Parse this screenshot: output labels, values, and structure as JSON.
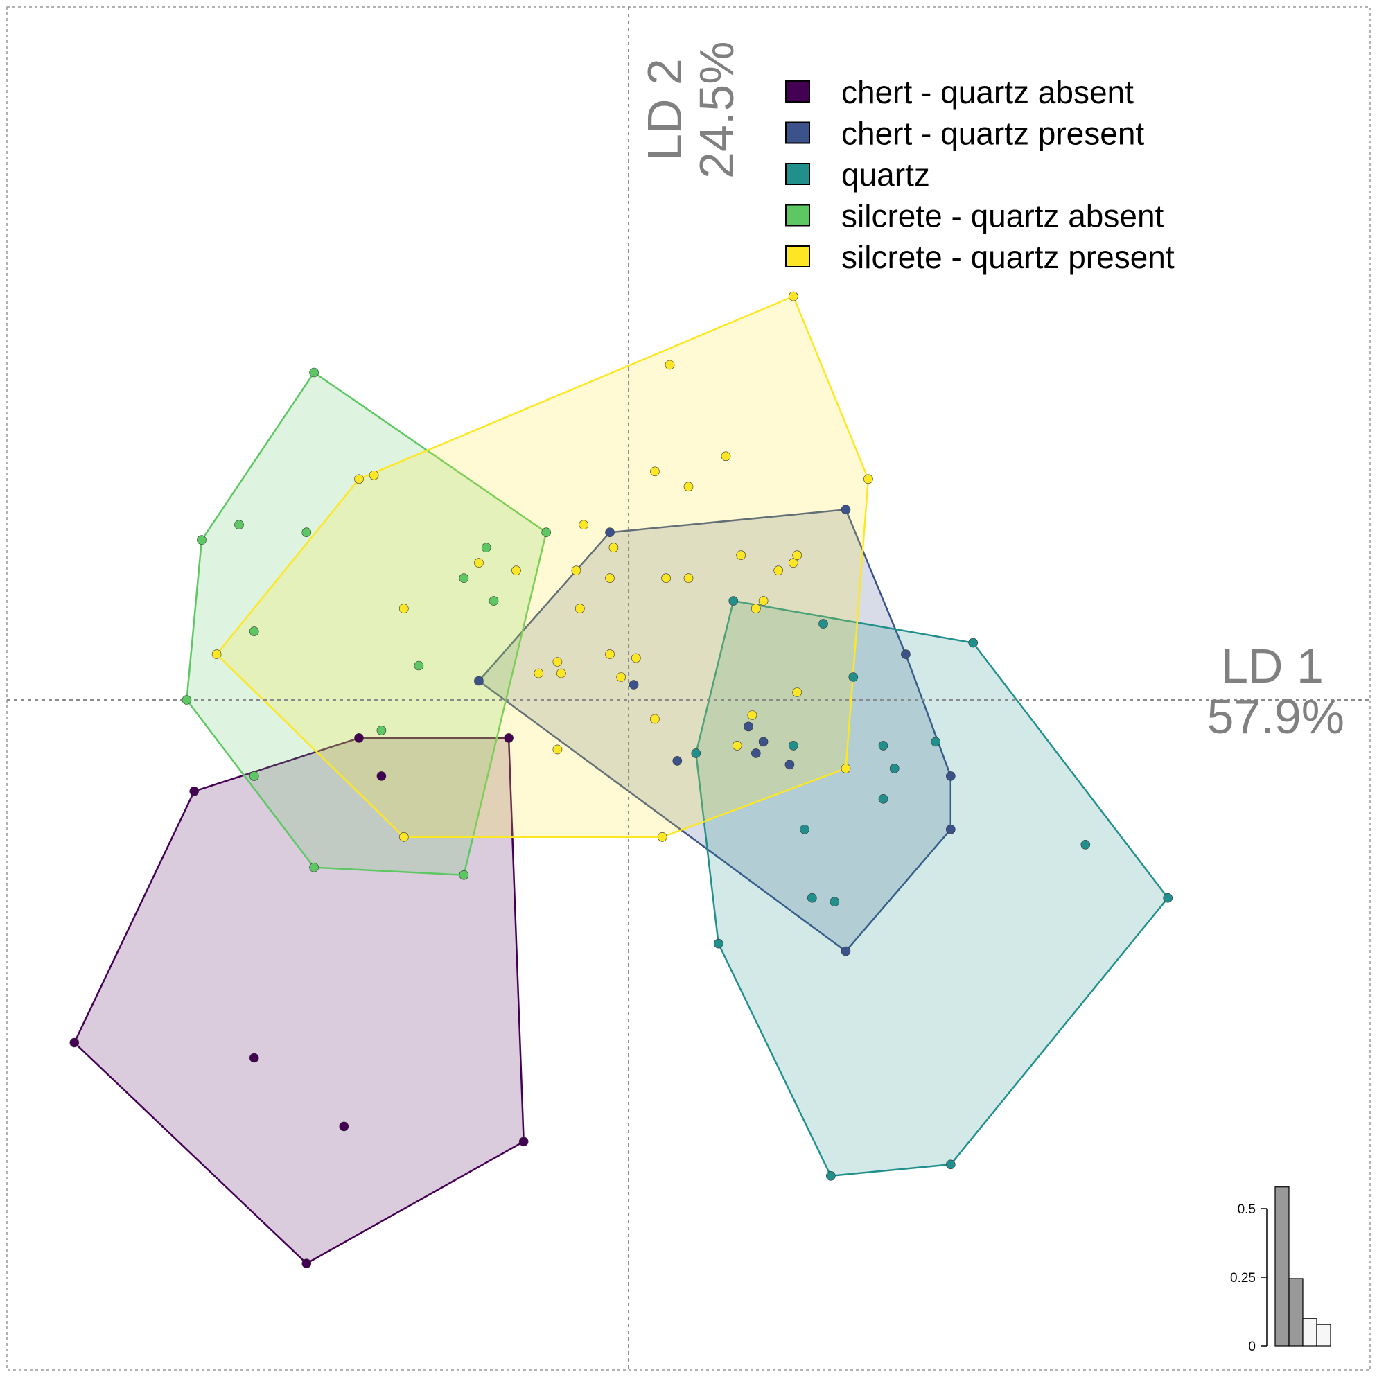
{
  "chart_data": {
    "type": "scatter",
    "title": "",
    "xlabel": "LD 1",
    "xlabel_pct": "57.9%",
    "ylabel": "LD 2",
    "ylabel_pct": "24.5%",
    "xlim": [
      -8.3,
      9.9
    ],
    "ylim": [
      -8.8,
      9.1
    ],
    "axis_lines_at_zero": true,
    "grid": false,
    "legend_position": "top-right",
    "hulls": true,
    "series": [
      {
        "name": "chert - quartz absent",
        "color": "#440154",
        "points": [
          [
            -7.4,
            -4.5
          ],
          [
            -5.8,
            -1.2
          ],
          [
            -3.6,
            -0.5
          ],
          [
            -3.3,
            -1.0
          ],
          [
            -1.6,
            -0.5
          ],
          [
            -1.4,
            -5.8
          ],
          [
            -4.3,
            -7.4
          ],
          [
            -5.0,
            -4.7
          ],
          [
            -3.8,
            -5.6
          ]
        ]
      },
      {
        "name": "chert - quartz present",
        "color": "#3B528B",
        "points": [
          [
            -2.0,
            0.25
          ],
          [
            -0.25,
            2.2
          ],
          [
            2.9,
            2.5
          ],
          [
            3.7,
            0.6
          ],
          [
            4.3,
            -1.0
          ],
          [
            4.3,
            -1.7
          ],
          [
            2.9,
            -3.3
          ],
          [
            0.07,
            0.2
          ],
          [
            0.65,
            -0.8
          ],
          [
            1.6,
            -0.35
          ],
          [
            1.7,
            -0.7
          ],
          [
            1.8,
            -0.55
          ],
          [
            2.15,
            -0.85
          ]
        ]
      },
      {
        "name": "quartz",
        "color": "#21908C",
        "points": [
          [
            1.4,
            1.3
          ],
          [
            4.6,
            0.75
          ],
          [
            7.2,
            -2.6
          ],
          [
            4.3,
            -6.1
          ],
          [
            2.7,
            -6.25
          ],
          [
            1.2,
            -3.2
          ],
          [
            0.9,
            -0.7
          ],
          [
            2.6,
            1.0
          ],
          [
            3.0,
            0.3
          ],
          [
            3.4,
            -0.6
          ],
          [
            3.55,
            -0.9
          ],
          [
            3.4,
            -1.3
          ],
          [
            2.35,
            -1.7
          ],
          [
            2.45,
            -2.6
          ],
          [
            2.75,
            -2.65
          ],
          [
            4.1,
            -0.55
          ],
          [
            6.1,
            -1.9
          ],
          [
            2.2,
            -0.6
          ]
        ]
      },
      {
        "name": "silcrete - quartz absent",
        "color": "#5DC863",
        "points": [
          [
            -5.7,
            2.1
          ],
          [
            -4.2,
            4.3
          ],
          [
            -1.1,
            2.2
          ],
          [
            -2.2,
            -2.3
          ],
          [
            -4.2,
            -2.2
          ],
          [
            -5.0,
            -1.0
          ],
          [
            -5.9,
            0.0
          ],
          [
            -5.2,
            2.3
          ],
          [
            -4.3,
            2.2
          ],
          [
            -1.9,
            2.0
          ],
          [
            -1.8,
            1.3
          ],
          [
            -2.2,
            1.6
          ],
          [
            -5.0,
            0.9
          ],
          [
            -2.8,
            0.45
          ],
          [
            -3.3,
            -0.4
          ]
        ]
      },
      {
        "name": "silcrete - quartz present",
        "color": "#FDE725",
        "points": [
          [
            -5.5,
            0.6
          ],
          [
            -3.6,
            2.9
          ],
          [
            -3.4,
            2.95
          ],
          [
            2.2,
            5.3
          ],
          [
            3.2,
            2.9
          ],
          [
            2.9,
            -0.9
          ],
          [
            0.45,
            -1.8
          ],
          [
            -3.0,
            -1.8
          ],
          [
            0.55,
            4.4
          ],
          [
            1.3,
            3.2
          ],
          [
            0.35,
            3.0
          ],
          [
            0.8,
            2.8
          ],
          [
            -0.6,
            2.3
          ],
          [
            -0.2,
            2.0
          ],
          [
            -0.7,
            1.7
          ],
          [
            -2.0,
            1.8
          ],
          [
            -1.5,
            1.7
          ],
          [
            -3.0,
            1.2
          ],
          [
            -0.25,
            1.6
          ],
          [
            0.5,
            1.6
          ],
          [
            0.8,
            1.6
          ],
          [
            -0.65,
            1.2
          ],
          [
            1.7,
            1.2
          ],
          [
            1.8,
            1.3
          ],
          [
            2.0,
            1.7
          ],
          [
            2.2,
            1.8
          ],
          [
            2.25,
            1.9
          ],
          [
            1.5,
            1.9
          ],
          [
            -0.25,
            0.6
          ],
          [
            -0.95,
            0.5
          ],
          [
            -1.2,
            0.35
          ],
          [
            -0.9,
            0.35
          ],
          [
            0.1,
            0.55
          ],
          [
            -0.1,
            0.3
          ],
          [
            -0.95,
            -0.65
          ],
          [
            0.35,
            -0.25
          ],
          [
            1.65,
            -0.2
          ],
          [
            1.45,
            -0.6
          ],
          [
            2.25,
            0.1
          ]
        ]
      }
    ],
    "inset_bar": {
      "type": "bar",
      "description_values": [
        0.579,
        0.245,
        0.099,
        0.078
      ],
      "highlighted_count": 2,
      "ticks": [
        "0",
        "0.25",
        "0.5"
      ],
      "tick_values": [
        0,
        0.25,
        0.5
      ]
    }
  }
}
